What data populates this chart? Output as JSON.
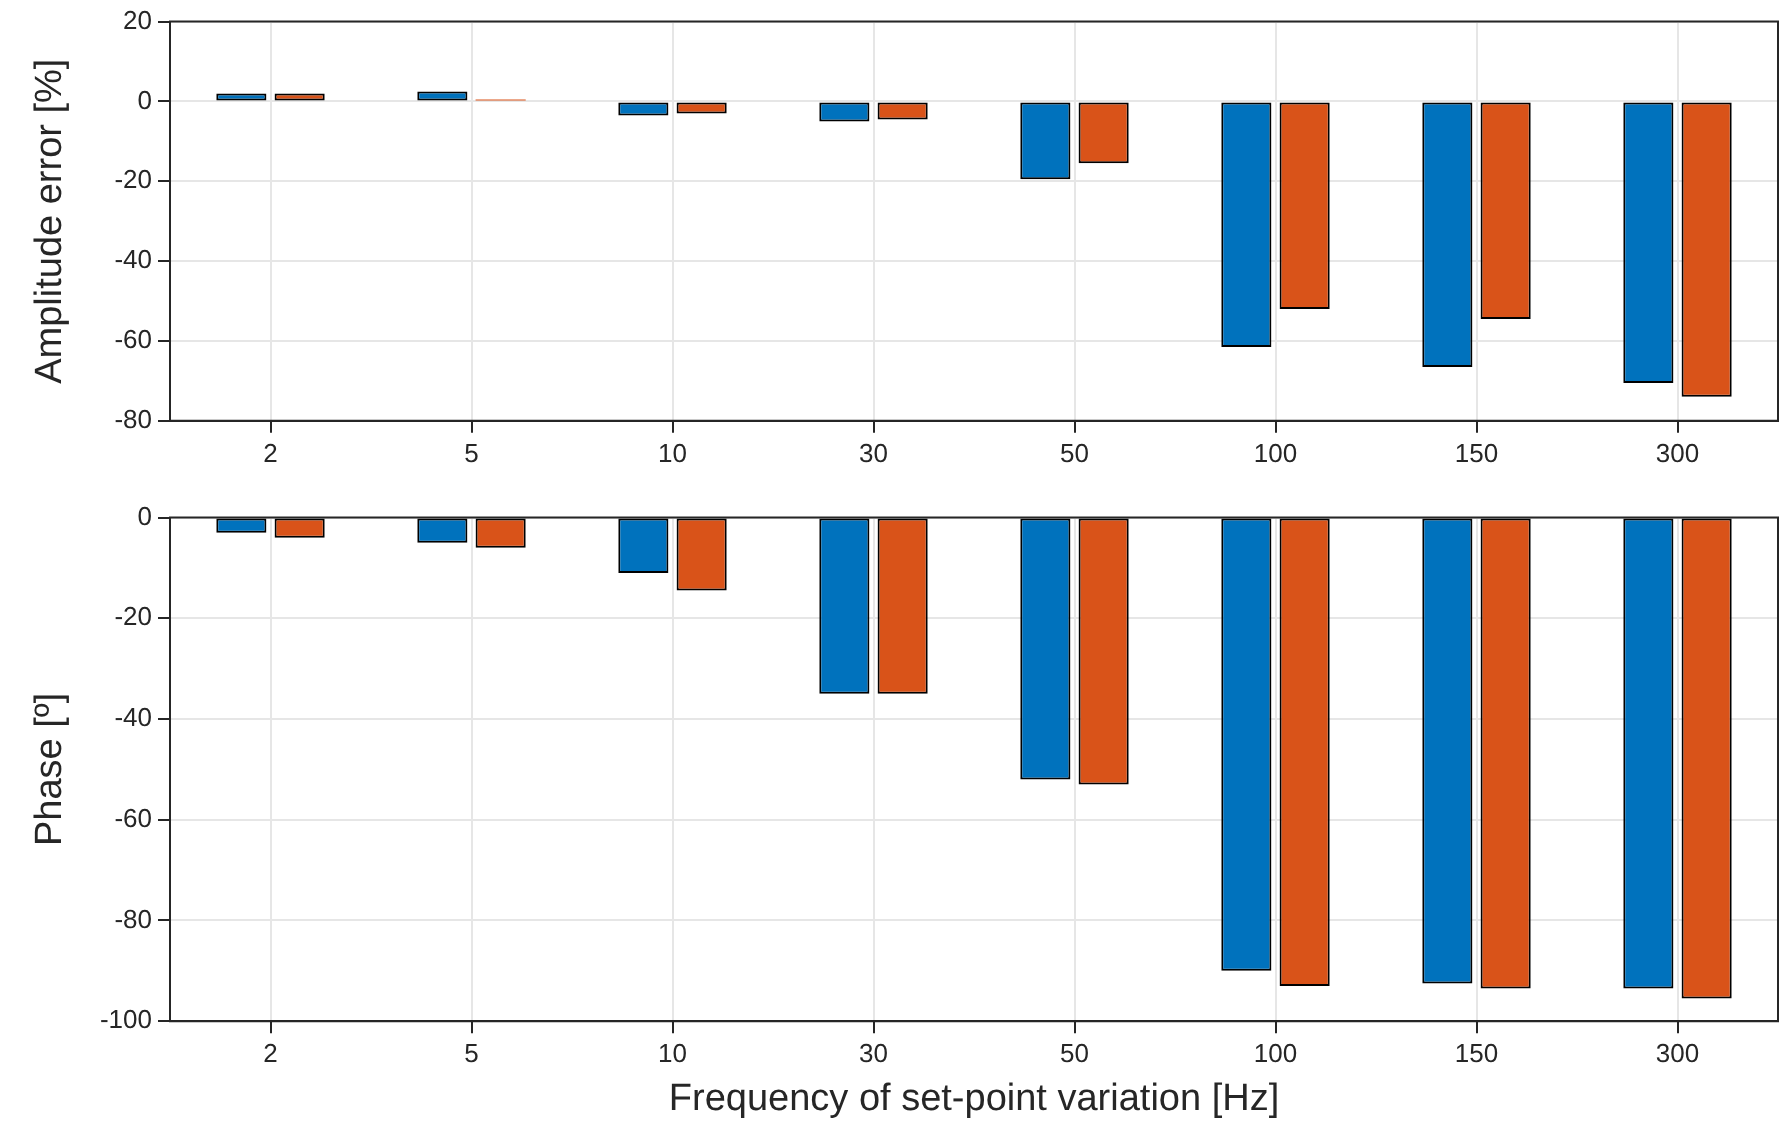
{
  "chart_data": [
    {
      "type": "bar",
      "ylabel": "Amplitude error [%]",
      "categories": [
        "2",
        "5",
        "10",
        "30",
        "50",
        "100",
        "150",
        "300"
      ],
      "ylim": [
        -80,
        20
      ],
      "yticks": [
        -80,
        -60,
        -40,
        -20,
        0,
        20
      ],
      "grid": true,
      "series": [
        {
          "color": "#0072bd",
          "values": [
            2,
            2.5,
            -3.5,
            -5,
            -19.5,
            -61.5,
            -66.5,
            -70.5
          ]
        },
        {
          "color": "#d95319",
          "values": [
            2,
            0.5,
            -3,
            -4.5,
            -15.5,
            -52,
            -54.5,
            -74
          ]
        }
      ]
    },
    {
      "type": "bar",
      "ylabel": "Phase [º]",
      "xlabel": "Frequency of set-point variation [Hz]",
      "categories": [
        "2",
        "5",
        "10",
        "30",
        "50",
        "100",
        "150",
        "300"
      ],
      "ylim": [
        -100,
        0
      ],
      "yticks": [
        -100,
        -80,
        -60,
        -40,
        -20,
        0
      ],
      "grid": true,
      "series": [
        {
          "color": "#0072bd",
          "values": [
            -3,
            -5,
            -11,
            -35,
            -52,
            -90,
            -92.5,
            -93.5
          ]
        },
        {
          "color": "#d95319",
          "values": [
            -4,
            -6,
            -14.5,
            -35,
            -53,
            -93,
            -93.5,
            -95.5
          ]
        }
      ]
    }
  ]
}
